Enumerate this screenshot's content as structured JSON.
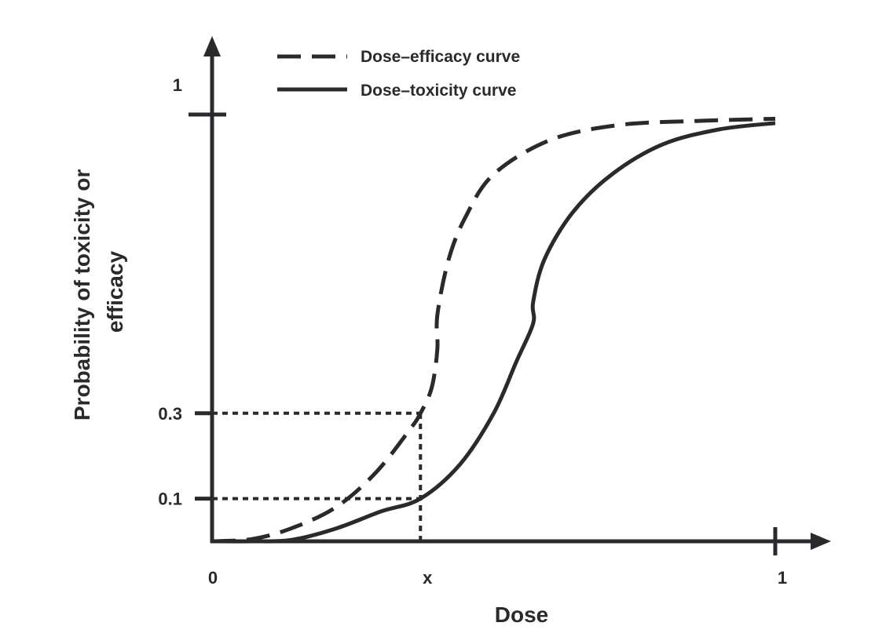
{
  "chart_data": {
    "type": "line",
    "xlabel": "Dose",
    "ylabel_lines": [
      "Probability of toxicity or",
      "efficacy"
    ],
    "x_ticks": [
      {
        "value": 0,
        "label": "0"
      },
      {
        "value": 0.37,
        "label": "x"
      },
      {
        "value": 1,
        "label": "1"
      }
    ],
    "y_ticks": [
      {
        "value": 0.1,
        "label": "0.1"
      },
      {
        "value": 0.3,
        "label": "0.3"
      },
      {
        "value": 1.0,
        "label": "1"
      }
    ],
    "xlim": [
      0,
      1
    ],
    "ylim": [
      0,
      1.0
    ],
    "grid": false,
    "legend_position": "top",
    "series": [
      {
        "name": "Dose–efficacy curve",
        "style": "dashed",
        "points": [
          [
            0,
            0
          ],
          [
            0.07,
            0.005
          ],
          [
            0.14,
            0.03
          ],
          [
            0.22,
            0.08
          ],
          [
            0.29,
            0.16
          ],
          [
            0.35,
            0.26
          ],
          [
            0.37,
            0.3
          ],
          [
            0.39,
            0.36
          ],
          [
            0.4,
            0.45
          ],
          [
            0.4,
            0.53
          ],
          [
            0.42,
            0.66
          ],
          [
            0.45,
            0.76
          ],
          [
            0.5,
            0.86
          ],
          [
            0.6,
            0.94
          ],
          [
            0.72,
            0.975
          ],
          [
            0.86,
            0.985
          ],
          [
            1,
            0.99
          ]
        ]
      },
      {
        "name": "Dose–toxicity curve",
        "style": "solid",
        "points": [
          [
            0,
            0
          ],
          [
            0.07,
            0
          ],
          [
            0.14,
            0.003
          ],
          [
            0.22,
            0.03
          ],
          [
            0.3,
            0.07
          ],
          [
            0.37,
            0.1
          ],
          [
            0.44,
            0.18
          ],
          [
            0.5,
            0.3
          ],
          [
            0.54,
            0.42
          ],
          [
            0.57,
            0.51
          ],
          [
            0.57,
            0.56
          ],
          [
            0.59,
            0.66
          ],
          [
            0.64,
            0.77
          ],
          [
            0.71,
            0.86
          ],
          [
            0.8,
            0.93
          ],
          [
            0.9,
            0.965
          ],
          [
            1,
            0.98
          ]
        ]
      }
    ],
    "reference_lines": [
      {
        "from": [
          0,
          0.3
        ],
        "to": [
          0.37,
          0.3
        ],
        "style": "dotted"
      },
      {
        "from": [
          0,
          0.1
        ],
        "to": [
          0.37,
          0.1
        ],
        "style": "dotted"
      },
      {
        "from": [
          0.37,
          0
        ],
        "to": [
          0.37,
          0.3
        ],
        "style": "dotted"
      }
    ]
  },
  "colors": {
    "ink": "#2a2a2e",
    "background": "#ffffff"
  }
}
